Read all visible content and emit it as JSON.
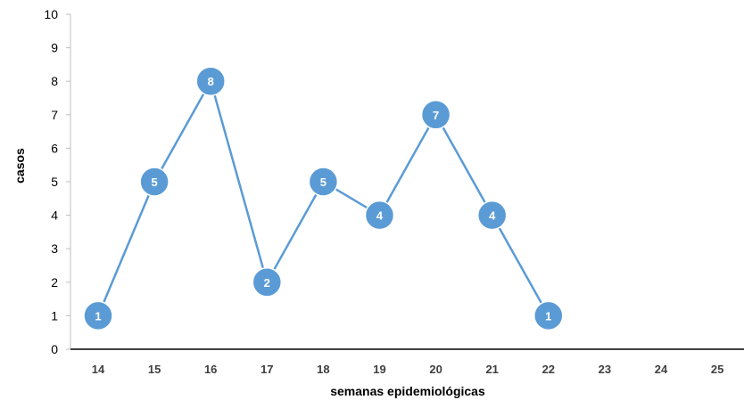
{
  "chart_data": {
    "type": "line",
    "title": "",
    "xlabel": "semanas epidemiológicas",
    "ylabel": "casos",
    "categories": [
      "14",
      "15",
      "16",
      "17",
      "18",
      "19",
      "20",
      "21",
      "22",
      "23",
      "24",
      "25"
    ],
    "series": [
      {
        "values": [
          1,
          5,
          8,
          2,
          5,
          4,
          7,
          4,
          1,
          null,
          null,
          null
        ]
      }
    ],
    "ylim": [
      0,
      10
    ],
    "yticks": [
      "0",
      "1",
      "2",
      "3",
      "4",
      "5",
      "6",
      "7",
      "8",
      "9",
      "10"
    ],
    "grid": false,
    "legend": "none",
    "colors": {
      "series": "#5b9bd5",
      "marker_border": "#ffffff",
      "axis": "#404040",
      "y_axis": "#bfbfbf"
    }
  }
}
